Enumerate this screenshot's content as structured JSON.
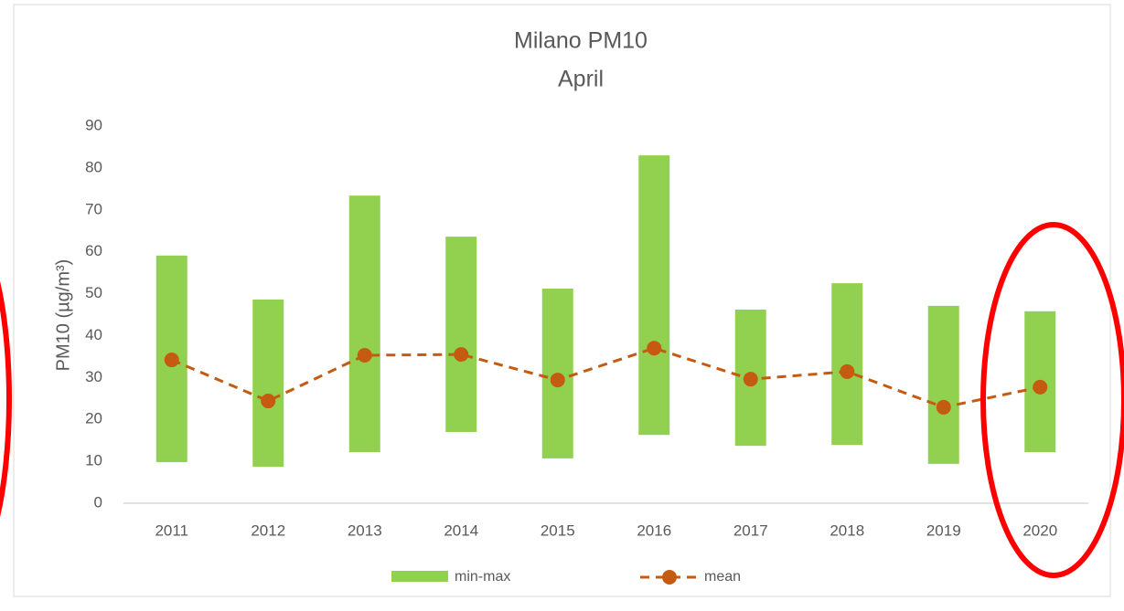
{
  "chart_data": {
    "type": "range_bar_line",
    "title": "Milano PM10",
    "subtitle": "April",
    "y_label": "PM10 (µg/m³)",
    "categories": [
      "2011",
      "2012",
      "2013",
      "2014",
      "2015",
      "2016",
      "2017",
      "2018",
      "2019",
      "2020"
    ],
    "series": [
      {
        "name": "min-max",
        "color": "#92d050",
        "low": [
          9.8,
          8.7,
          12.2,
          17,
          10.7,
          16.3,
          13.7,
          13.9,
          9.4,
          12.2
        ],
        "high": [
          59.1,
          48.6,
          73.4,
          63.6,
          51.2,
          83,
          46.2,
          52.5,
          47.1,
          45.8
        ]
      },
      {
        "name": "mean",
        "color": "#c55a11",
        "values": [
          34.2,
          24.4,
          35.3,
          35.5,
          29.4,
          37,
          29.6,
          31.4,
          22.9,
          27.7
        ]
      }
    ],
    "ylim": [
      0,
      90
    ],
    "yticks": [
      0,
      10,
      20,
      30,
      40,
      50,
      60,
      70,
      80,
      90
    ],
    "grid": false
  }
}
